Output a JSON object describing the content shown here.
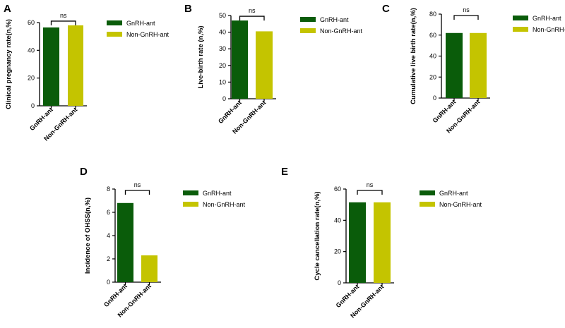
{
  "figure_title": "",
  "colors": {
    "series1": "#0a5c0a",
    "series2": "#c4c400",
    "axis": "#000000"
  },
  "chart_data": [
    {
      "panel": "A",
      "type": "bar",
      "categories": [
        "GnRH-ant",
        "Non-GnRH-ant"
      ],
      "values": [
        56.5,
        58
      ],
      "ylabel": "Clinical pregnancy rate(n,%)",
      "ylim": [
        0,
        60
      ],
      "yticks": [
        "0",
        "20",
        "40",
        "60"
      ],
      "yticks_values": [
        0,
        20,
        40,
        60
      ],
      "significance": "ns",
      "legend": [
        "GnRH-ant",
        "Non-GnRH-ant"
      ]
    },
    {
      "panel": "B",
      "type": "bar",
      "categories": [
        "GnRH-ant",
        "Non-GnRH-ant"
      ],
      "values": [
        47,
        40.5
      ],
      "ylabel": "Live-birth rate (n,%)",
      "ylim": [
        0,
        50
      ],
      "yticks": [
        "0",
        "10",
        "20",
        "30",
        "40",
        "50"
      ],
      "yticks_values": [
        0,
        10,
        20,
        30,
        40,
        50
      ],
      "significance": "ns",
      "legend": [
        "GnRH-ant",
        "Non-GnRH-ant"
      ]
    },
    {
      "panel": "C",
      "type": "bar",
      "categories": [
        "GnRH-ant",
        "Non-GnRH-ant"
      ],
      "values": [
        62,
        62
      ],
      "ylabel": "Cumulative live birth rate(n,%)",
      "ylim": [
        0,
        80
      ],
      "yticks": [
        "0",
        "20",
        "40",
        "60",
        "80"
      ],
      "yticks_values": [
        0,
        20,
        40,
        60,
        80
      ],
      "significance": "ns",
      "legend": [
        "GnRH-ant",
        "Non-GnRH-ant"
      ]
    },
    {
      "panel": "D",
      "type": "bar",
      "categories": [
        "GnRH-ant",
        "Non-GnRH-ant"
      ],
      "values": [
        6.8,
        2.3
      ],
      "ylabel": "Incidence of OHSS(n,%)",
      "ylim": [
        0,
        8
      ],
      "yticks": [
        "0",
        "2",
        "4",
        "6",
        "8"
      ],
      "yticks_values": [
        0,
        2,
        4,
        6,
        8
      ],
      "significance": "ns",
      "legend": [
        "GnRH-ant",
        "Non-GnRH-ant"
      ]
    },
    {
      "panel": "E",
      "type": "bar",
      "categories": [
        "GnRH-ant",
        "Non-GnRH-ant"
      ],
      "values": [
        51.5,
        51.5
      ],
      "ylabel": "Cycle cancellation rate(n,%)",
      "ylim": [
        0,
        60
      ],
      "yticks": [
        "0",
        "20",
        "40",
        "60"
      ],
      "yticks_values": [
        0,
        20,
        40,
        60
      ],
      "significance": "ns",
      "legend": [
        "GnRH-ant",
        "Non-GnRH-ant"
      ]
    }
  ]
}
